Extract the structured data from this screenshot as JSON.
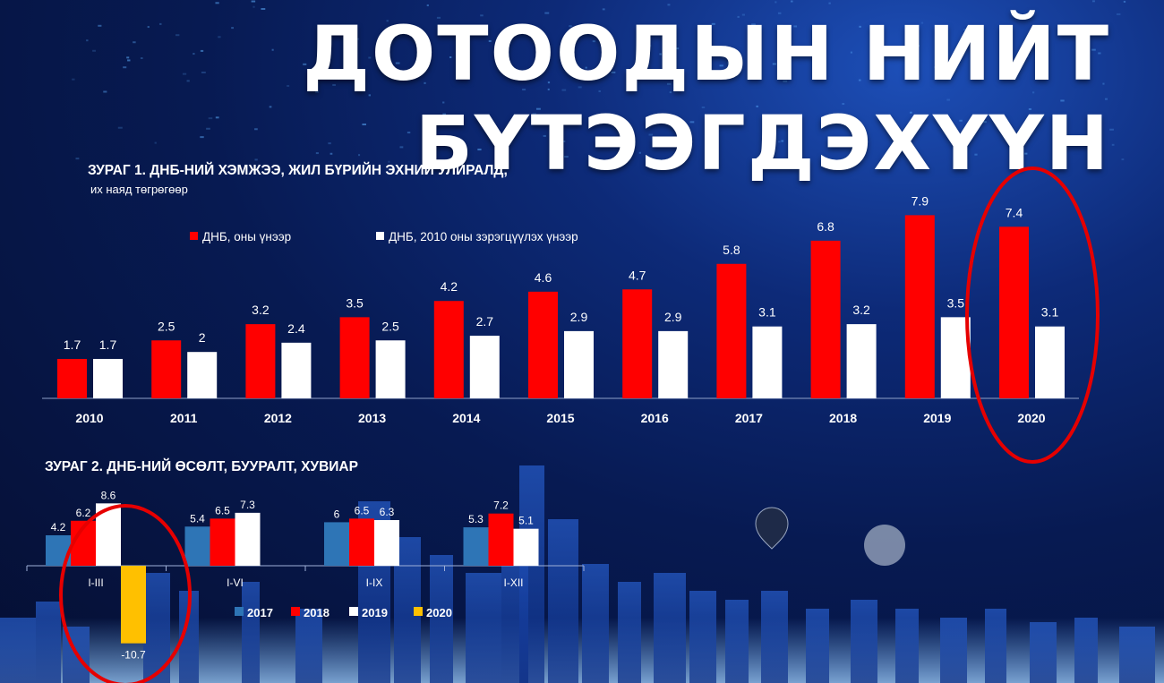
{
  "header": {
    "title_line1": "ДОТООДЫН НИЙТ",
    "title_line2": "БҮТЭЭГДЭХҮҮН"
  },
  "colors": {
    "red": "#ff0000",
    "white": "#ffffff",
    "blue": "#2e75b6",
    "yellow": "#ffc000",
    "highlight": "#e60000"
  },
  "chart_data": [
    {
      "type": "bar",
      "title": "ЗУРАГ 1. ДНБ-НИЙ ХЭМЖЭЭ, ЖИЛ БҮРИЙН ЭХНИЙ УЛИРАЛД,",
      "subtitle": "их наяд төгрөгөөр",
      "categories": [
        "2010",
        "2011",
        "2012",
        "2013",
        "2014",
        "2015",
        "2016",
        "2017",
        "2018",
        "2019",
        "2020"
      ],
      "series": [
        {
          "name": "ДНБ, оны үнээр",
          "color": "#ff0000",
          "values": [
            1.7,
            2.5,
            3.2,
            3.5,
            4.2,
            4.6,
            4.7,
            5.8,
            6.8,
            7.9,
            7.4
          ]
        },
        {
          "name": "ДНБ, 2010 оны зэрэгцүүлэх үнээр",
          "color": "#ffffff",
          "values": [
            1.7,
            2,
            2.4,
            2.5,
            2.7,
            2.9,
            2.9,
            3.1,
            3.2,
            3.5,
            3.1
          ]
        }
      ],
      "value_labels": [
        [
          "1.7",
          "2.5",
          "3.2",
          "3.5",
          "4.2",
          "4.6",
          "4.7",
          "5.8",
          "6.8",
          "7.9",
          "7.4"
        ],
        [
          "1.7",
          "2",
          "2.4",
          "2.5",
          "2.7",
          "2.9",
          "2.9",
          "3.1",
          "3.2",
          "3.5",
          "3.1"
        ]
      ],
      "ylim": [
        0,
        8
      ],
      "legend": "top-left",
      "grid": false,
      "highlight": "2020"
    },
    {
      "type": "bar",
      "title": "ЗУРАГ 2. ДНБ-НИЙ ӨСӨЛТ, БУУРАЛТ, ХУВИАР",
      "categories": [
        "I-III",
        "I-VI",
        "I-IX",
        "I-XII"
      ],
      "series": [
        {
          "name": "2017",
          "color": "#2e75b6",
          "values": [
            4.2,
            5.4,
            6,
            5.3
          ]
        },
        {
          "name": "2018",
          "color": "#ff0000",
          "values": [
            6.2,
            6.5,
            6.5,
            7.2
          ]
        },
        {
          "name": "2019",
          "color": "#ffffff",
          "values": [
            8.6,
            7.3,
            6.3,
            5.1
          ]
        },
        {
          "name": "2020",
          "color": "#ffc000",
          "values": [
            -10.7,
            null,
            null,
            null
          ]
        }
      ],
      "value_labels": [
        [
          "4.2",
          "5.4",
          "6",
          "5.3"
        ],
        [
          "6.2",
          "6.5",
          "6.5",
          "7.2"
        ],
        [
          "8.6",
          "7.3",
          "6.3",
          "5.1"
        ],
        [
          "-10.7",
          "",
          "",
          ""
        ]
      ],
      "ylim": [
        -10.7,
        8.6
      ],
      "legend": "bottom",
      "grid": false,
      "highlight": "I-III"
    }
  ]
}
